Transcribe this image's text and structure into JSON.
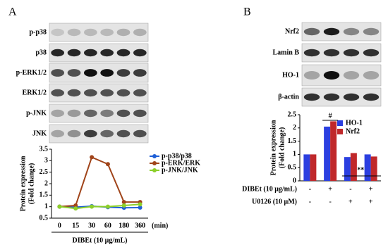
{
  "panels": [
    {
      "label": "A",
      "blot_labels": [
        "p-p38",
        "p38",
        "p-ERK1/2",
        "ERK1/2",
        "p-JNK",
        "JNK"
      ]
    },
    {
      "label": "B",
      "blot_labels": [
        "Nrf2",
        "Lamin B",
        "HO-1",
        "β-actin"
      ]
    }
  ],
  "chart_data": [
    {
      "type": "line",
      "y_label": [
        "Protein expression",
        "(Fold change)"
      ],
      "categories": [
        "0",
        "15",
        "30",
        "60",
        "180",
        "360"
      ],
      "x_unit": "(min)",
      "x_label": "DIBEt (10 μg/mL)",
      "series": [
        {
          "name": "p-p38/p38",
          "color": "#1f5fd6",
          "values": [
            1,
            0.98,
            1.02,
            0.98,
            0.95,
            0.96
          ]
        },
        {
          "name": "p-ERK/ERK",
          "color": "#a0441a",
          "values": [
            1,
            1.05,
            3.15,
            2.85,
            1.2,
            1.2
          ]
        },
        {
          "name": "p-JNK/JNK",
          "color": "#8ccf2a",
          "values": [
            1,
            0.92,
            1.0,
            1.0,
            1.05,
            1.1
          ]
        }
      ],
      "ylim": [
        0.5,
        3.5
      ],
      "yticks": [
        0.5,
        1,
        1.5,
        2,
        2.5,
        3,
        3.5
      ]
    },
    {
      "type": "bar",
      "y_label": [
        "Protein expression",
        "(Fold change)"
      ],
      "categories": [
        null,
        null,
        null,
        null
      ],
      "series": [
        {
          "name": "HO-1",
          "color": "#2b3fe0",
          "values": [
            1.0,
            2.05,
            0.9,
            1.0
          ]
        },
        {
          "name": "Nrf2",
          "color": "#c0282a",
          "values": [
            1.0,
            2.25,
            1.05,
            0.92
          ]
        }
      ],
      "annotations": [
        "#",
        "**"
      ],
      "conditions": [
        {
          "label": "DIBEt (10 μg/mL)",
          "values": [
            "-",
            "+",
            "-",
            "+"
          ]
        },
        {
          "label": "U0126 (10 μM)",
          "values": [
            "-",
            "-",
            "+",
            "+"
          ]
        }
      ],
      "ylim": [
        0,
        2.5
      ],
      "yticks": [
        0,
        0.5,
        1,
        1.5,
        2,
        2.5
      ]
    }
  ]
}
